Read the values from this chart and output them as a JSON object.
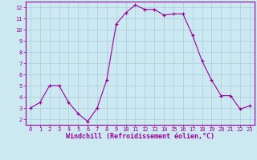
{
  "x": [
    0,
    1,
    2,
    3,
    4,
    5,
    6,
    7,
    8,
    9,
    10,
    11,
    12,
    13,
    14,
    15,
    16,
    17,
    18,
    19,
    20,
    21,
    22,
    23
  ],
  "y": [
    3.0,
    3.5,
    5.0,
    5.0,
    3.5,
    2.5,
    1.8,
    3.0,
    5.5,
    10.5,
    11.5,
    12.2,
    11.8,
    11.8,
    11.3,
    11.4,
    11.4,
    9.5,
    7.2,
    5.5,
    4.1,
    4.1,
    2.9,
    3.2
  ],
  "line_color": "#990099",
  "marker_color": "#990099",
  "bg_color": "#cce8f0",
  "grid_color": "#aaccdd",
  "xlabel": "Windchill (Refroidissement éolien,°C)",
  "xlabel_color": "#990099",
  "tick_color": "#990099",
  "ylim": [
    1.5,
    12.5
  ],
  "xlim": [
    -0.5,
    23.5
  ],
  "yticks": [
    2,
    3,
    4,
    5,
    6,
    7,
    8,
    9,
    10,
    11,
    12
  ],
  "xticks": [
    0,
    1,
    2,
    3,
    4,
    5,
    6,
    7,
    8,
    9,
    10,
    11,
    12,
    13,
    14,
    15,
    16,
    17,
    18,
    19,
    20,
    21,
    22,
    23
  ],
  "axis_color": "#990099",
  "spine_color": "#990099",
  "xlabel_fontsize": 6.0,
  "tick_fontsize_x": 5.0,
  "tick_fontsize_y": 6.0,
  "linewidth": 0.8,
  "markersize": 3.0
}
